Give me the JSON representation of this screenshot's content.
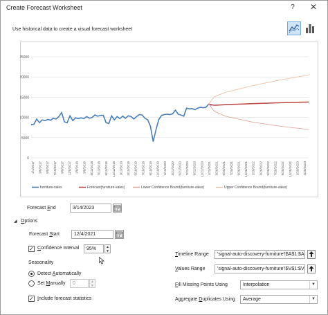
{
  "dialog": {
    "title": "Create Forecast Worksheet",
    "help_label": "?",
    "close_label": "✕",
    "subtitle": "Use historical data to create a visual forecast worksheet"
  },
  "chart_data": {
    "type": "line",
    "x_labels": [
      "1/1/2017",
      "3/1/2017",
      "5/1/2017",
      "7/1/2017",
      "9/1/2017",
      "11/1/2017",
      "1/1/2018",
      "3/1/2018",
      "5/1/2018",
      "7/1/2018",
      "9/1/2018",
      "11/1/2018",
      "1/1/2019",
      "3/1/2019",
      "5/1/2019",
      "7/1/2019",
      "9/1/2019",
      "11/1/2019",
      "1/1/2020",
      "3/1/2020",
      "5/1/2020",
      "7/1/2020",
      "9/1/2020",
      "11/1/2020",
      "1/1/2021",
      "3/1/2021",
      "5/1/2021",
      "7/1/2021",
      "9/1/2021",
      "11/1/2021",
      "1/1/2022",
      "3/1/2022",
      "5/1/2022",
      "7/1/2022",
      "9/1/2022",
      "11/1/2022",
      "1/1/2023",
      "3/1/2023"
    ],
    "x_tick_labels": [
      "1/1/2017",
      "3/6/2017",
      "5/8/2017",
      "7/10/2017",
      "9/8/2017",
      "11/8/2017",
      "1/8/2018",
      "3/8/2018",
      "5/13/2018",
      "7/13/2018",
      "9/13/2018",
      "11/13/2018",
      "1/13/2019",
      "3/15/2019",
      "5/18/2019",
      "7/18/2019",
      "9/18/2019",
      "11/18/2019",
      "1/19/2020",
      "3/21/2020",
      "5/21/2020",
      "7/22/2020",
      "9/22/2020",
      "11/22/2020",
      "1/23/2021",
      "3/26/2021",
      "5/26/2021",
      "7/26/2021",
      "9/26/2021",
      "11/26/2021",
      "1/26/2022",
      "3/26/2022",
      "5/28/2022",
      "7/28/2022",
      "9/28/2022",
      "11/28/2022",
      "1/28/2023",
      "2/28/2023"
    ],
    "y_ticks": [
      0,
      5000,
      10000,
      15000,
      20000,
      25000
    ],
    "ylim": [
      0,
      25000
    ],
    "grid": true,
    "legend_position": "bottom",
    "series": [
      {
        "name": "furniture-sales",
        "color": "#4a7ebb",
        "points": [
          [
            0,
            8200
          ],
          [
            1,
            8300
          ],
          [
            2,
            9600
          ],
          [
            3,
            8700
          ],
          [
            4,
            9400
          ],
          [
            5,
            9200
          ],
          [
            6,
            9500
          ],
          [
            7,
            9300
          ],
          [
            8,
            9800
          ],
          [
            9,
            9600
          ],
          [
            10,
            10200
          ],
          [
            11,
            11200
          ],
          [
            12,
            8900
          ],
          [
            13,
            8700
          ],
          [
            14,
            10400
          ],
          [
            15,
            9200
          ],
          [
            16,
            9900
          ],
          [
            17,
            9700
          ],
          [
            18,
            9900
          ],
          [
            19,
            9700
          ],
          [
            20,
            10200
          ],
          [
            21,
            9800
          ],
          [
            22,
            10000
          ],
          [
            23,
            10600
          ],
          [
            24,
            10300
          ],
          [
            25,
            10500
          ],
          [
            26,
            10500
          ],
          [
            27,
            8700
          ],
          [
            28,
            8500
          ],
          [
            29,
            10400
          ],
          [
            30,
            9400
          ],
          [
            31,
            10200
          ],
          [
            32,
            9700
          ],
          [
            33,
            10300
          ],
          [
            34,
            9800
          ],
          [
            35,
            10400
          ],
          [
            36,
            10200
          ],
          [
            37,
            9600
          ],
          [
            38,
            10200
          ],
          [
            39,
            10700
          ],
          [
            40,
            10600
          ],
          [
            41,
            9800
          ],
          [
            42,
            9400
          ],
          [
            43,
            7800
          ],
          [
            44,
            4000
          ],
          [
            45,
            7000
          ],
          [
            46,
            9500
          ],
          [
            47,
            10500
          ],
          [
            48,
            10700
          ],
          [
            49,
            10800
          ],
          [
            50,
            10700
          ],
          [
            51,
            10900
          ],
          [
            52,
            11800
          ],
          [
            53,
            10800
          ],
          [
            54,
            10600
          ],
          [
            55,
            10300
          ],
          [
            56,
            12300
          ],
          [
            57,
            12100
          ],
          [
            58,
            12200
          ],
          [
            59,
            11900
          ],
          [
            60,
            12300
          ],
          [
            61,
            12500
          ],
          [
            62,
            12400
          ],
          [
            63,
            12500
          ],
          [
            64,
            13300
          ],
          [
            65,
            13000
          ]
        ]
      },
      {
        "name": "Forecast(furniture-sales)",
        "color": "#c0504d",
        "points": [
          [
            64,
            13300
          ],
          [
            66,
            13000
          ],
          [
            70,
            13150
          ],
          [
            80,
            13400
          ],
          [
            90,
            13650
          ],
          [
            100,
            13800
          ]
        ]
      },
      {
        "name": "Lower Confidence Bound(furniture-sales)",
        "color": "#e6a79f",
        "points": [
          [
            64,
            13300
          ],
          [
            66,
            11500
          ],
          [
            70,
            10300
          ],
          [
            80,
            8800
          ],
          [
            90,
            7800
          ],
          [
            100,
            7000
          ]
        ]
      },
      {
        "name": "Upper Confidence Bound(furniture-sales)",
        "color": "#f0c1aa",
        "points": [
          [
            64,
            13300
          ],
          [
            66,
            15100
          ],
          [
            70,
            16200
          ],
          [
            80,
            17900
          ],
          [
            90,
            19300
          ],
          [
            100,
            20500
          ]
        ]
      }
    ]
  },
  "form": {
    "forecast_end_label": "Forecast End",
    "forecast_end_value": "3/14/2023",
    "options_label": "Options",
    "forecast_start_label": "Forecast Start",
    "forecast_start_value": "12/4/2021",
    "confidence_label": "Confidence Interval",
    "confidence_value": "95%",
    "confidence_checked": true,
    "seasonality_label": "Seasonality",
    "detect_auto_label": "Detect Automatically",
    "set_manually_label": "Set Manually",
    "set_manually_value": "0",
    "include_stats_label": "Include forecast statistics",
    "include_stats_checked": true,
    "timeline_range_label": "Timeline Range",
    "timeline_range_value": "'signal-auto-discovery-furniture'!$A$1:$A$",
    "values_range_label": "Values Range",
    "values_range_value": "'signal-auto-discovery-furniture'!$V$1:$V$",
    "fill_missing_label": "Fill Missing Points Using",
    "fill_missing_value": "Interpolation",
    "aggregate_label": "Aggregate Duplicates Using",
    "aggregate_value": "Average"
  },
  "icons": {
    "line_chart": "line-chart-icon",
    "column_chart": "column-chart-icon",
    "calendar": "calendar-icon",
    "upload": "range-select-icon",
    "cursor": "mouse-cursor-icon"
  }
}
